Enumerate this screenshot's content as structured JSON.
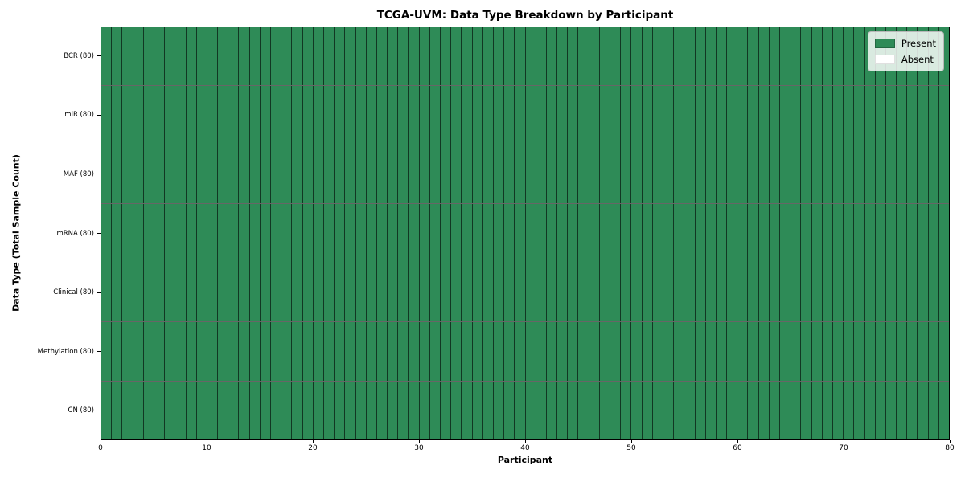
{
  "chart_data": {
    "type": "heatmap",
    "title": "TCGA-UVM: Data Type Breakdown by Participant",
    "xlabel": "Participant",
    "ylabel": "Data Type (Total Sample Count)",
    "xlim": [
      0,
      80
    ],
    "x_ticks": [
      0,
      10,
      20,
      30,
      40,
      50,
      60,
      70,
      80
    ],
    "n_participants": 80,
    "grid": true,
    "rows": [
      {
        "label": "BCR (80)",
        "data_type": "BCR",
        "total_samples": 80,
        "present_count": 80,
        "absent_count": 0
      },
      {
        "label": "miR (80)",
        "data_type": "miR",
        "total_samples": 80,
        "present_count": 80,
        "absent_count": 0
      },
      {
        "label": "MAF (80)",
        "data_type": "MAF",
        "total_samples": 80,
        "present_count": 80,
        "absent_count": 0
      },
      {
        "label": "mRNA (80)",
        "data_type": "mRNA",
        "total_samples": 80,
        "present_count": 80,
        "absent_count": 0
      },
      {
        "label": "Clinical (80)",
        "data_type": "Clinical",
        "total_samples": 80,
        "present_count": 80,
        "absent_count": 0
      },
      {
        "label": "Methylation (80)",
        "data_type": "Methylation",
        "total_samples": 80,
        "present_count": 80,
        "absent_count": 0
      },
      {
        "label": "CN (80)",
        "data_type": "CN",
        "total_samples": 80,
        "present_count": 80,
        "absent_count": 0
      }
    ],
    "legend": {
      "position": "upper right",
      "items": [
        {
          "label": "Present",
          "color": "#2e8b57"
        },
        {
          "label": "Absent",
          "color": "#ffffff"
        }
      ]
    },
    "colors": {
      "present": "#2e8b57",
      "absent": "#ffffff",
      "grid_line": "rgba(0,0,0,0.6)",
      "axis": "#000000",
      "background": "#ffffff"
    }
  }
}
